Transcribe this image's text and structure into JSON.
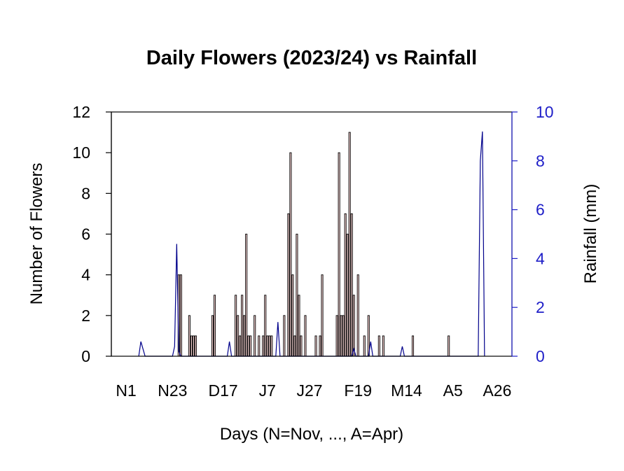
{
  "chart_data": {
    "type": "bar",
    "title": "Daily Flowers (2023/24) vs Rainfall",
    "xlabel": "Days (N=Nov, ..., A=Apr)",
    "ylabel": "Number of Flowers",
    "y2label": "Rainfall (mm)",
    "ylim": [
      0,
      12
    ],
    "y2lim": [
      0,
      10
    ],
    "yticks": [
      "0",
      "2",
      "4",
      "6",
      "8",
      "10",
      "12"
    ],
    "y2ticks": [
      "0",
      "2",
      "4",
      "6",
      "8",
      "10"
    ],
    "xlim": [
      -3,
      187
    ],
    "x_ticks": [
      {
        "label": "N1",
        "day": 4
      },
      {
        "label": "N23",
        "day": 26
      },
      {
        "label": "D17",
        "day": 50
      },
      {
        "label": "J7",
        "day": 71
      },
      {
        "label": "J27",
        "day": 91
      },
      {
        "label": "F19",
        "day": 114
      },
      {
        "label": "M14",
        "day": 137
      },
      {
        "label": "A5",
        "day": 159
      },
      {
        "label": "A26",
        "day": 180
      }
    ],
    "colors": {
      "flower_bar_fill": "#f2cfcf",
      "flower_bar_stroke": "#000000",
      "rainfall_line": "#00008b",
      "right_axis": "#1f1fc8",
      "text": "#000000"
    },
    "series": [
      {
        "name": "Number of Flowers",
        "axis": "left",
        "type": "bar",
        "points": [
          [
            29,
            4
          ],
          [
            30,
            4
          ],
          [
            34,
            2
          ],
          [
            35,
            1
          ],
          [
            36,
            1
          ],
          [
            37,
            1
          ],
          [
            45,
            2
          ],
          [
            46,
            3
          ],
          [
            56,
            3
          ],
          [
            57,
            2
          ],
          [
            58,
            1
          ],
          [
            59,
            3
          ],
          [
            60,
            2
          ],
          [
            61,
            6
          ],
          [
            62,
            1
          ],
          [
            63,
            1
          ],
          [
            65,
            2
          ],
          [
            67,
            1
          ],
          [
            69,
            1
          ],
          [
            70,
            3
          ],
          [
            71,
            1
          ],
          [
            72,
            1
          ],
          [
            73,
            1
          ],
          [
            79,
            2
          ],
          [
            81,
            7
          ],
          [
            82,
            10
          ],
          [
            83,
            4
          ],
          [
            84,
            1
          ],
          [
            85,
            6
          ],
          [
            86,
            3
          ],
          [
            87,
            1
          ],
          [
            89,
            2
          ],
          [
            94,
            1
          ],
          [
            96,
            1
          ],
          [
            97,
            4
          ],
          [
            104,
            2
          ],
          [
            105,
            10
          ],
          [
            106,
            2
          ],
          [
            107,
            2
          ],
          [
            108,
            7
          ],
          [
            109,
            6
          ],
          [
            110,
            11
          ],
          [
            111,
            7
          ],
          [
            112,
            3
          ],
          [
            114,
            4
          ],
          [
            117,
            1
          ],
          [
            119,
            2
          ],
          [
            124,
            1
          ],
          [
            126,
            1
          ],
          [
            140,
            1
          ],
          [
            157,
            1
          ]
        ]
      },
      {
        "name": "Rainfall (mm)",
        "axis": "right",
        "type": "line",
        "points": [
          [
            10,
            0
          ],
          [
            11,
            0.6
          ],
          [
            12,
            0.3
          ],
          [
            13,
            0
          ],
          [
            26,
            0
          ],
          [
            27,
            0.4
          ],
          [
            28,
            4.6
          ],
          [
            29,
            0.2
          ],
          [
            30,
            0
          ],
          [
            52,
            0
          ],
          [
            53,
            0.6
          ],
          [
            54,
            0
          ],
          [
            75,
            0
          ],
          [
            76,
            1.4
          ],
          [
            77,
            0
          ],
          [
            111,
            0
          ],
          [
            112,
            0.3
          ],
          [
            113,
            0
          ],
          [
            119,
            0
          ],
          [
            120,
            0.6
          ],
          [
            121,
            0
          ],
          [
            134,
            0
          ],
          [
            135,
            0.4
          ],
          [
            136,
            0
          ],
          [
            171,
            0
          ],
          [
            172,
            8.0
          ],
          [
            173,
            9.2
          ],
          [
            174,
            0
          ]
        ]
      }
    ]
  }
}
